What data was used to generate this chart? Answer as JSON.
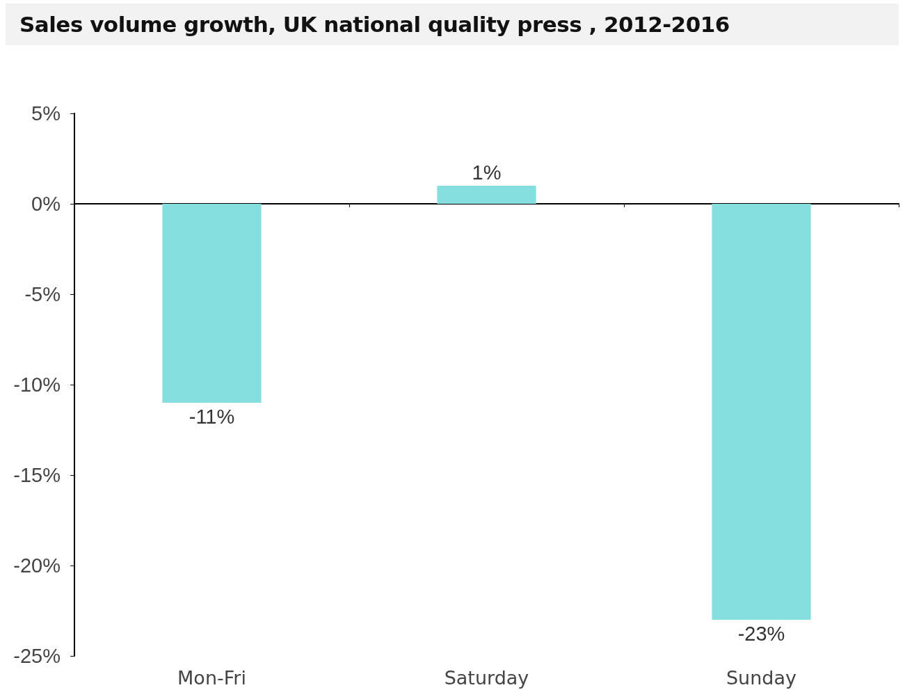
{
  "chart_data": {
    "type": "bar",
    "title": "Sales volume growth, UK national quality press , 2012-2016",
    "categories": [
      "Mon-Fri",
      "Saturday",
      "Sunday"
    ],
    "values": [
      -11,
      1,
      -23
    ],
    "color": "#86dfdf",
    "value_labels": [
      "-11%",
      "1%",
      "-23%"
    ],
    "ylim": [
      -25,
      5
    ],
    "yticks": [
      {
        "value": 5,
        "label": "5%"
      },
      {
        "value": 0,
        "label": "0%"
      },
      {
        "value": -5,
        "label": "-5%"
      },
      {
        "value": -10,
        "label": "-10%"
      },
      {
        "value": -15,
        "label": "-15%"
      },
      {
        "value": -20,
        "label": "-20%"
      },
      {
        "value": -25,
        "label": "-25%"
      }
    ],
    "tick_labels": "xy"
  }
}
